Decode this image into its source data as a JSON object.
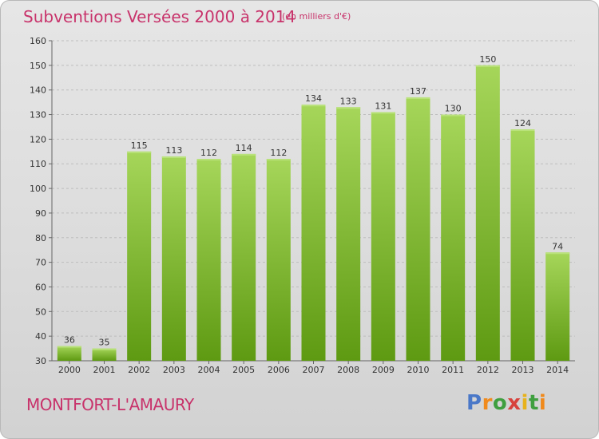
{
  "title": "Subventions Versées 2000 à 2014",
  "subtitle": "(en milliers d'€)",
  "commune": "MONTFORT-L'AMAURY",
  "logo": {
    "text": "Proxiti"
  },
  "colors": {
    "title": "#c8336b",
    "bar_light": "#9fd14f",
    "bar_dark": "#5e9a12",
    "grid": "#bdbdbd"
  },
  "chart_data": {
    "type": "bar",
    "title": "Subventions Versées 2000 à 2014",
    "subtitle": "(en milliers d'€)",
    "xlabel": "",
    "ylabel": "",
    "categories": [
      "2000",
      "2001",
      "2002",
      "2003",
      "2004",
      "2005",
      "2006",
      "2007",
      "2008",
      "2009",
      "2010",
      "2011",
      "2012",
      "2013",
      "2014"
    ],
    "values": [
      36,
      35,
      115,
      113,
      112,
      114,
      112,
      134,
      133,
      131,
      137,
      130,
      150,
      124,
      74
    ],
    "ylim": [
      30,
      160
    ],
    "yticks": [
      30,
      40,
      50,
      60,
      70,
      80,
      90,
      100,
      110,
      120,
      130,
      140,
      150,
      160
    ],
    "grid": true,
    "legend": "none"
  }
}
